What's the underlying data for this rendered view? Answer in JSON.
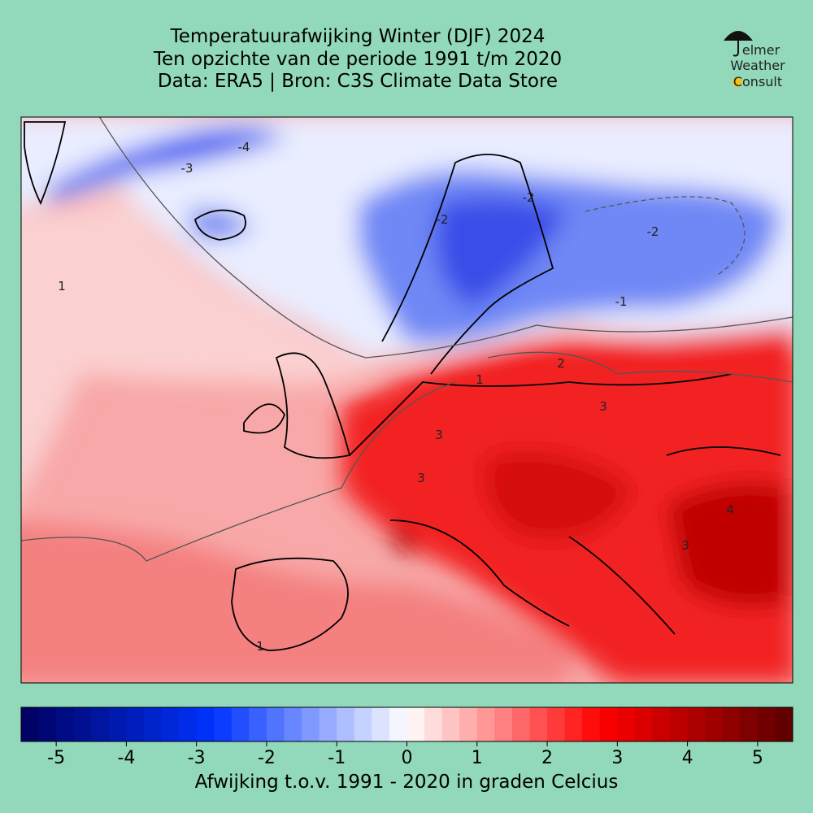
{
  "header": {
    "title_lines": [
      "Temperatuurafwijking Winter (DJF) 2024",
      "Ten opzichte van de periode 1991 t/m 2020",
      "Data: ERA5 | Bron: C3S Climate Data Store"
    ]
  },
  "logo": {
    "lines": [
      "elmer",
      "Weather",
      "Consult"
    ]
  },
  "map": {
    "contour_labels": [
      "-3",
      "-4",
      "-2",
      "-2",
      "-1",
      "-2",
      "1",
      "1",
      "2",
      "3",
      "3",
      "3",
      "4",
      "3",
      "1"
    ]
  },
  "colorbar": {
    "range": [
      -5.5,
      5.5
    ],
    "step": 0.25,
    "ticks": [
      -5,
      -4,
      -3,
      -2,
      -1,
      0,
      1,
      2,
      3,
      4,
      5
    ],
    "cmap": [
      "#00005e",
      "#0033ff",
      "#ffffff",
      "#ff0000",
      "#5a0000"
    ],
    "label": "Afwijking t.o.v. 1991 - 2020 in graden Celcius"
  }
}
